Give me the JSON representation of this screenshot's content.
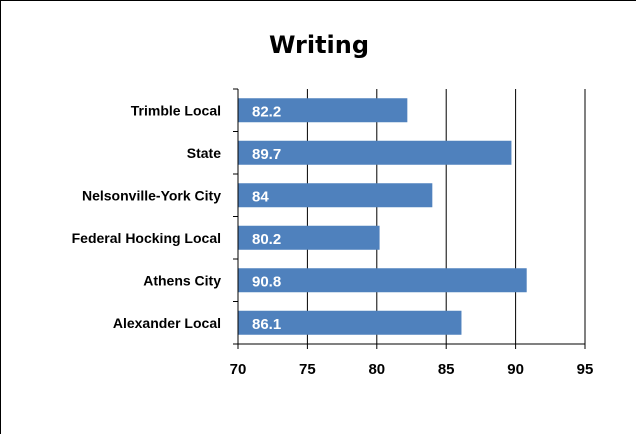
{
  "chart_data": {
    "type": "bar",
    "orientation": "horizontal",
    "title": "Writing",
    "categories": [
      "Trimble Local",
      "State",
      "Nelsonville-York City",
      "Federal Hocking Local",
      "Athens City",
      "Alexander Local"
    ],
    "values": [
      82.2,
      89.7,
      84,
      80.2,
      90.8,
      86.1
    ],
    "data_labels": [
      "82.2",
      "89.7",
      "84",
      "80.2",
      "90.8",
      "86.1"
    ],
    "xlim": [
      70,
      95
    ],
    "ticks": [
      "70",
      "75",
      "80",
      "85",
      "90",
      "95"
    ],
    "grid": true,
    "legend": "none",
    "xlabel": "",
    "ylabel": "",
    "bar_color": "#4F81BD",
    "grid_color": "#000000"
  }
}
